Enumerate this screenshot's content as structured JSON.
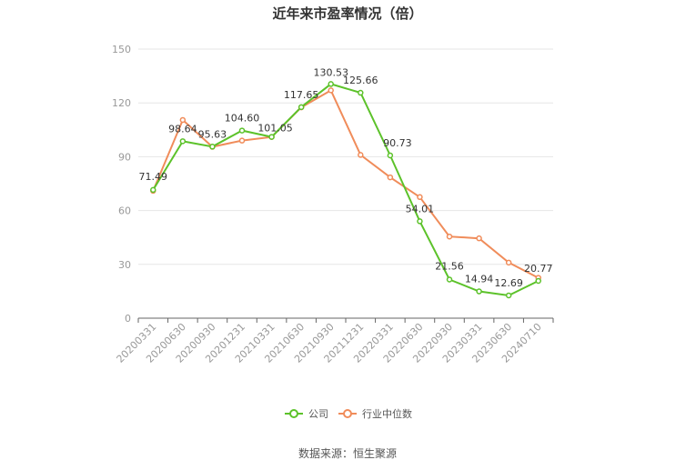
{
  "chart_data": {
    "type": "line",
    "title": "近年来市盈率情况（倍）",
    "categories": [
      "20200331",
      "20200630",
      "20200930",
      "20201231",
      "20210331",
      "20210630",
      "20210930",
      "20211231",
      "20220331",
      "20220630",
      "20220930",
      "20230331",
      "20230630",
      "20240710"
    ],
    "series": [
      {
        "name": "公司",
        "color": "#5cc22a",
        "values": [
          71.49,
          98.64,
          95.63,
          104.6,
          101.05,
          117.65,
          130.53,
          125.66,
          90.73,
          54.01,
          21.56,
          14.94,
          12.69,
          20.77
        ],
        "labels": [
          "71.49",
          "98.64",
          "95.63",
          "104.60",
          "101.05",
          "117.65",
          "130.53",
          "125.66",
          "90.73",
          "54.01",
          "21.56",
          "14.94",
          "12.69",
          "20.77"
        ]
      },
      {
        "name": "行业中位数",
        "color": "#f08c5a",
        "values": [
          71.0,
          110.5,
          95.5,
          99.0,
          101.0,
          117.5,
          127.0,
          91.0,
          78.5,
          67.5,
          45.5,
          44.5,
          31.0,
          22.5
        ]
      }
    ],
    "ylim": [
      0,
      150
    ],
    "yticks": [
      0,
      30,
      60,
      90,
      120,
      150
    ],
    "grid": true,
    "legend": "bottom"
  },
  "source": "数据来源：恒生聚源"
}
